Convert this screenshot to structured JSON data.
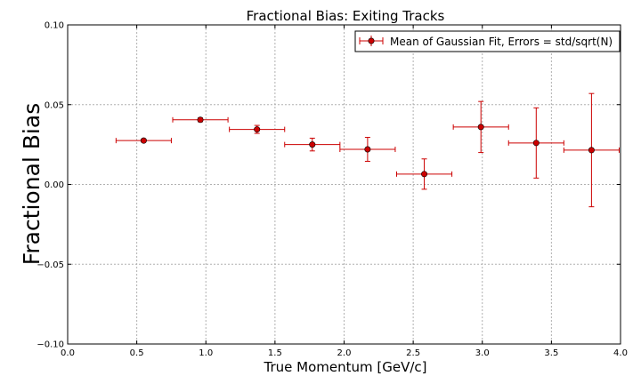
{
  "chart_data": {
    "type": "scatter",
    "title": "Fractional Bias: Exiting Tracks",
    "xlabel": "True Momentum [GeV/c]",
    "ylabel": "Fractional Bias",
    "xlim": [
      0.0,
      4.0
    ],
    "ylim": [
      -0.1,
      0.1
    ],
    "xticks": [
      "0.0",
      "0.5",
      "1.0",
      "1.5",
      "2.0",
      "2.5",
      "3.0",
      "3.5",
      "4.0"
    ],
    "yticks": [
      "−0.10",
      "−0.05",
      "0.00",
      "0.05",
      "0.10"
    ],
    "grid": true,
    "legend_position": "top-right",
    "color": "#cc0000",
    "series": [
      {
        "name": "Mean of Gaussian Fit, Errors = std/sqrt(N)",
        "x": [
          0.55,
          0.96,
          1.37,
          1.77,
          2.17,
          2.58,
          2.99,
          3.39,
          3.79
        ],
        "y": [
          0.0275,
          0.0405,
          0.0345,
          0.025,
          0.022,
          0.0065,
          0.036,
          0.026,
          0.0215
        ],
        "xerr": [
          0.2,
          0.2,
          0.2,
          0.2,
          0.2,
          0.2,
          0.2,
          0.2,
          0.2
        ],
        "yerr": [
          0.0008,
          0.0012,
          0.0025,
          0.004,
          0.0075,
          0.0095,
          0.016,
          0.022,
          0.0355
        ]
      }
    ]
  }
}
